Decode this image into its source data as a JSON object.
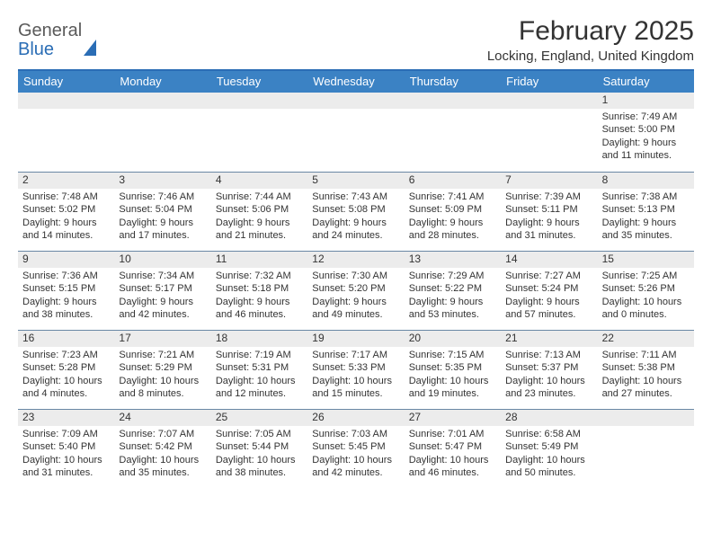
{
  "logo": {
    "top": "General",
    "bottom": "Blue"
  },
  "title": "February 2025",
  "location": "Locking, England, United Kingdom",
  "colors": {
    "accent": "#3b82c4",
    "divider": "#2a6db5",
    "cell_border": "#6a88a5",
    "date_bar_bg": "#ececec",
    "background": "#ffffff",
    "text": "#333333"
  },
  "typography": {
    "title_fontsize": 30,
    "location_fontsize": 15,
    "day_header_fontsize": 13,
    "date_fontsize": 12,
    "body_fontsize": 11
  },
  "layout": {
    "columns": 7,
    "rows": 5,
    "first_day_column_index": 6
  },
  "day_names": [
    "Sunday",
    "Monday",
    "Tuesday",
    "Wednesday",
    "Thursday",
    "Friday",
    "Saturday"
  ],
  "days": [
    {
      "n": "1",
      "sunrise": "Sunrise: 7:49 AM",
      "sunset": "Sunset: 5:00 PM",
      "day1": "Daylight: 9 hours",
      "day2": "and 11 minutes."
    },
    {
      "n": "2",
      "sunrise": "Sunrise: 7:48 AM",
      "sunset": "Sunset: 5:02 PM",
      "day1": "Daylight: 9 hours",
      "day2": "and 14 minutes."
    },
    {
      "n": "3",
      "sunrise": "Sunrise: 7:46 AM",
      "sunset": "Sunset: 5:04 PM",
      "day1": "Daylight: 9 hours",
      "day2": "and 17 minutes."
    },
    {
      "n": "4",
      "sunrise": "Sunrise: 7:44 AM",
      "sunset": "Sunset: 5:06 PM",
      "day1": "Daylight: 9 hours",
      "day2": "and 21 minutes."
    },
    {
      "n": "5",
      "sunrise": "Sunrise: 7:43 AM",
      "sunset": "Sunset: 5:08 PM",
      "day1": "Daylight: 9 hours",
      "day2": "and 24 minutes."
    },
    {
      "n": "6",
      "sunrise": "Sunrise: 7:41 AM",
      "sunset": "Sunset: 5:09 PM",
      "day1": "Daylight: 9 hours",
      "day2": "and 28 minutes."
    },
    {
      "n": "7",
      "sunrise": "Sunrise: 7:39 AM",
      "sunset": "Sunset: 5:11 PM",
      "day1": "Daylight: 9 hours",
      "day2": "and 31 minutes."
    },
    {
      "n": "8",
      "sunrise": "Sunrise: 7:38 AM",
      "sunset": "Sunset: 5:13 PM",
      "day1": "Daylight: 9 hours",
      "day2": "and 35 minutes."
    },
    {
      "n": "9",
      "sunrise": "Sunrise: 7:36 AM",
      "sunset": "Sunset: 5:15 PM",
      "day1": "Daylight: 9 hours",
      "day2": "and 38 minutes."
    },
    {
      "n": "10",
      "sunrise": "Sunrise: 7:34 AM",
      "sunset": "Sunset: 5:17 PM",
      "day1": "Daylight: 9 hours",
      "day2": "and 42 minutes."
    },
    {
      "n": "11",
      "sunrise": "Sunrise: 7:32 AM",
      "sunset": "Sunset: 5:18 PM",
      "day1": "Daylight: 9 hours",
      "day2": "and 46 minutes."
    },
    {
      "n": "12",
      "sunrise": "Sunrise: 7:30 AM",
      "sunset": "Sunset: 5:20 PM",
      "day1": "Daylight: 9 hours",
      "day2": "and 49 minutes."
    },
    {
      "n": "13",
      "sunrise": "Sunrise: 7:29 AM",
      "sunset": "Sunset: 5:22 PM",
      "day1": "Daylight: 9 hours",
      "day2": "and 53 minutes."
    },
    {
      "n": "14",
      "sunrise": "Sunrise: 7:27 AM",
      "sunset": "Sunset: 5:24 PM",
      "day1": "Daylight: 9 hours",
      "day2": "and 57 minutes."
    },
    {
      "n": "15",
      "sunrise": "Sunrise: 7:25 AM",
      "sunset": "Sunset: 5:26 PM",
      "day1": "Daylight: 10 hours",
      "day2": "and 0 minutes."
    },
    {
      "n": "16",
      "sunrise": "Sunrise: 7:23 AM",
      "sunset": "Sunset: 5:28 PM",
      "day1": "Daylight: 10 hours",
      "day2": "and 4 minutes."
    },
    {
      "n": "17",
      "sunrise": "Sunrise: 7:21 AM",
      "sunset": "Sunset: 5:29 PM",
      "day1": "Daylight: 10 hours",
      "day2": "and 8 minutes."
    },
    {
      "n": "18",
      "sunrise": "Sunrise: 7:19 AM",
      "sunset": "Sunset: 5:31 PM",
      "day1": "Daylight: 10 hours",
      "day2": "and 12 minutes."
    },
    {
      "n": "19",
      "sunrise": "Sunrise: 7:17 AM",
      "sunset": "Sunset: 5:33 PM",
      "day1": "Daylight: 10 hours",
      "day2": "and 15 minutes."
    },
    {
      "n": "20",
      "sunrise": "Sunrise: 7:15 AM",
      "sunset": "Sunset: 5:35 PM",
      "day1": "Daylight: 10 hours",
      "day2": "and 19 minutes."
    },
    {
      "n": "21",
      "sunrise": "Sunrise: 7:13 AM",
      "sunset": "Sunset: 5:37 PM",
      "day1": "Daylight: 10 hours",
      "day2": "and 23 minutes."
    },
    {
      "n": "22",
      "sunrise": "Sunrise: 7:11 AM",
      "sunset": "Sunset: 5:38 PM",
      "day1": "Daylight: 10 hours",
      "day2": "and 27 minutes."
    },
    {
      "n": "23",
      "sunrise": "Sunrise: 7:09 AM",
      "sunset": "Sunset: 5:40 PM",
      "day1": "Daylight: 10 hours",
      "day2": "and 31 minutes."
    },
    {
      "n": "24",
      "sunrise": "Sunrise: 7:07 AM",
      "sunset": "Sunset: 5:42 PM",
      "day1": "Daylight: 10 hours",
      "day2": "and 35 minutes."
    },
    {
      "n": "25",
      "sunrise": "Sunrise: 7:05 AM",
      "sunset": "Sunset: 5:44 PM",
      "day1": "Daylight: 10 hours",
      "day2": "and 38 minutes."
    },
    {
      "n": "26",
      "sunrise": "Sunrise: 7:03 AM",
      "sunset": "Sunset: 5:45 PM",
      "day1": "Daylight: 10 hours",
      "day2": "and 42 minutes."
    },
    {
      "n": "27",
      "sunrise": "Sunrise: 7:01 AM",
      "sunset": "Sunset: 5:47 PM",
      "day1": "Daylight: 10 hours",
      "day2": "and 46 minutes."
    },
    {
      "n": "28",
      "sunrise": "Sunrise: 6:58 AM",
      "sunset": "Sunset: 5:49 PM",
      "day1": "Daylight: 10 hours",
      "day2": "and 50 minutes."
    }
  ]
}
